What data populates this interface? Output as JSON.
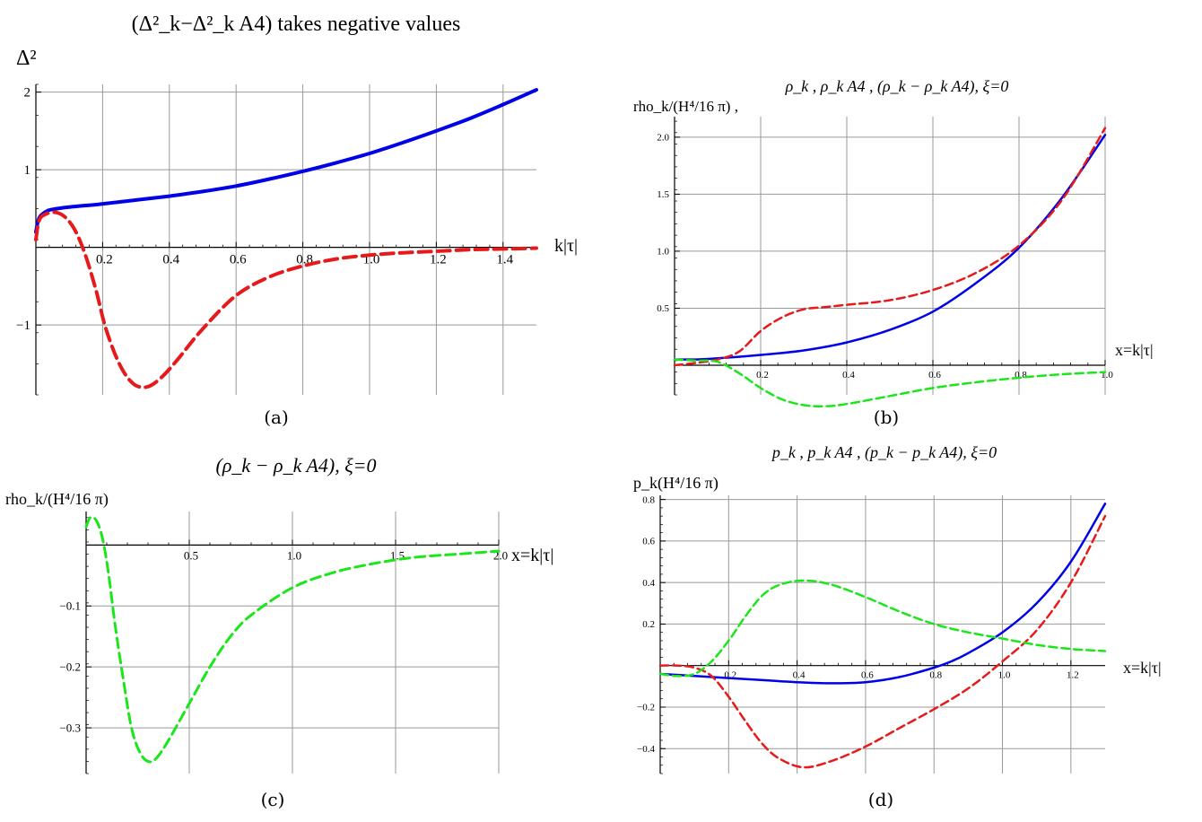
{
  "colors": {
    "blue": "#0000e6",
    "red": "#e61a1a",
    "green": "#1ae61a",
    "grid": "#999999"
  },
  "chart_data": [
    {
      "id": "a",
      "type": "line",
      "panel_label": "(a)",
      "title": "(Δ²_k−Δ²_k A4)  takes negative values",
      "ylabel": "Δ²",
      "xlabel": "k|τ|",
      "xlim": [
        0,
        1.5
      ],
      "ylim": [
        -1.9,
        2.1
      ],
      "xticks": [
        0.2,
        0.4,
        0.6,
        0.8,
        1.0,
        1.2,
        1.4
      ],
      "xtick_labels": [
        "0.2",
        "0.4",
        "0.6",
        "0.8",
        "1.0",
        "1.2",
        "1.4"
      ],
      "yticks": [
        -1,
        1,
        2
      ],
      "ytick_labels": [
        "−1",
        "1",
        "2"
      ],
      "grid": true,
      "series": [
        {
          "style": "solid",
          "color": "blue",
          "x": [
            0.0,
            0.01,
            0.03,
            0.05,
            0.1,
            0.2,
            0.3,
            0.4,
            0.5,
            0.6,
            0.7,
            0.8,
            0.9,
            1.0,
            1.1,
            1.2,
            1.3,
            1.4,
            1.5
          ],
          "y": [
            0.2,
            0.38,
            0.46,
            0.49,
            0.52,
            0.56,
            0.61,
            0.66,
            0.72,
            0.79,
            0.88,
            0.98,
            1.09,
            1.21,
            1.35,
            1.5,
            1.66,
            1.84,
            2.03
          ]
        },
        {
          "style": "dashed",
          "color": "red",
          "x": [
            0.0,
            0.01,
            0.03,
            0.06,
            0.09,
            0.12,
            0.15,
            0.18,
            0.21,
            0.25,
            0.29,
            0.33,
            0.37,
            0.42,
            0.5,
            0.6,
            0.7,
            0.8,
            0.9,
            1.0,
            1.1,
            1.2,
            1.3,
            1.4,
            1.5
          ],
          "y": [
            0.1,
            0.35,
            0.43,
            0.45,
            0.38,
            0.2,
            -0.12,
            -0.55,
            -1.05,
            -1.5,
            -1.75,
            -1.8,
            -1.7,
            -1.47,
            -1.05,
            -0.62,
            -0.38,
            -0.24,
            -0.15,
            -0.1,
            -0.07,
            -0.05,
            -0.03,
            -0.02,
            -0.01
          ]
        }
      ]
    },
    {
      "id": "b",
      "type": "line",
      "panel_label": "(b)",
      "title": "ρ_k ,   ρ_k A4 ,    (ρ_k − ρ_k A4),    ξ=0",
      "ylabel": "rho_k/(H⁴/16 π) ,",
      "xlabel": "x=k|τ|",
      "xlim": [
        0,
        1.0
      ],
      "ylim": [
        -0.26,
        2.18
      ],
      "xticks": [
        0.2,
        0.4,
        0.6,
        0.8,
        1.0
      ],
      "xtick_labels": [
        "0.2",
        "0.4",
        "0.6",
        "0.8",
        "1.0"
      ],
      "yticks": [
        0.5,
        1.0,
        1.5,
        2.0
      ],
      "ytick_labels": [
        "0.5",
        "1.0",
        "1.5",
        "2.0"
      ],
      "grid": true,
      "series": [
        {
          "style": "solid",
          "color": "blue",
          "x": [
            0.0,
            0.05,
            0.1,
            0.2,
            0.3,
            0.4,
            0.5,
            0.6,
            0.7,
            0.8,
            0.9,
            1.0
          ],
          "y": [
            0.05,
            0.05,
            0.06,
            0.09,
            0.13,
            0.2,
            0.31,
            0.47,
            0.72,
            1.03,
            1.47,
            2.02
          ]
        },
        {
          "style": "dashed",
          "color": "red",
          "x": [
            0.0,
            0.05,
            0.1,
            0.15,
            0.2,
            0.25,
            0.3,
            0.35,
            0.4,
            0.5,
            0.6,
            0.7,
            0.8,
            0.9,
            1.0
          ],
          "y": [
            0.0,
            0.02,
            0.05,
            0.12,
            0.3,
            0.42,
            0.49,
            0.51,
            0.53,
            0.57,
            0.66,
            0.81,
            1.05,
            1.45,
            2.08
          ]
        },
        {
          "style": "dashed",
          "color": "green",
          "x": [
            0.0,
            0.05,
            0.1,
            0.15,
            0.2,
            0.25,
            0.3,
            0.35,
            0.4,
            0.5,
            0.6,
            0.7,
            0.8,
            0.9,
            1.0
          ],
          "y": [
            0.05,
            0.04,
            0.03,
            -0.07,
            -0.2,
            -0.3,
            -0.35,
            -0.36,
            -0.34,
            -0.27,
            -0.2,
            -0.15,
            -0.11,
            -0.08,
            -0.06
          ]
        }
      ]
    },
    {
      "id": "c",
      "type": "line",
      "panel_label": "(c)",
      "title": "(ρ_k − ρ_k A4),    ξ=0",
      "ylabel": "rho_k/(H⁴/16 π)",
      "xlabel": "x=k|τ|",
      "xlim": [
        0,
        2.0
      ],
      "ylim": [
        -0.375,
        0.055
      ],
      "xticks": [
        0.5,
        1.0,
        1.5,
        2.0
      ],
      "xtick_labels": [
        "0.5",
        "1.0",
        "1.5",
        "2.0"
      ],
      "yticks": [
        -0.1,
        -0.2,
        -0.3
      ],
      "ytick_labels": [
        "−0.1",
        "−0.2",
        "−0.3"
      ],
      "grid": true,
      "series": [
        {
          "style": "dashed",
          "color": "green",
          "x": [
            0.0,
            0.02,
            0.05,
            0.08,
            0.11,
            0.14,
            0.18,
            0.22,
            0.26,
            0.3,
            0.34,
            0.4,
            0.5,
            0.6,
            0.7,
            0.8,
            1.0,
            1.2,
            1.4,
            1.6,
            1.8,
            2.0
          ],
          "y": [
            0.03,
            0.045,
            0.04,
            0.01,
            -0.05,
            -0.13,
            -0.22,
            -0.3,
            -0.34,
            -0.355,
            -0.35,
            -0.32,
            -0.26,
            -0.2,
            -0.15,
            -0.115,
            -0.07,
            -0.045,
            -0.03,
            -0.02,
            -0.015,
            -0.01
          ]
        }
      ]
    },
    {
      "id": "d",
      "type": "line",
      "panel_label": "(d)",
      "title": "p_k ,   p_k A4 ,    (p_k − p_k A4),    ξ=0",
      "ylabel": "p_k(H⁴/16 π)",
      "xlabel": "x=k|τ|",
      "xlim": [
        0,
        1.3
      ],
      "ylim": [
        -0.52,
        0.82
      ],
      "xticks": [
        0.2,
        0.4,
        0.6,
        0.8,
        1.0,
        1.2
      ],
      "xtick_labels": [
        "0.2",
        "0.4",
        "0.6",
        "0.8",
        "1.0",
        "1.2"
      ],
      "yticks": [
        -0.4,
        -0.2,
        0.2,
        0.4,
        0.6,
        0.8
      ],
      "ytick_labels": [
        "−0.4",
        "−0.2",
        "0.2",
        "0.4",
        "0.6",
        "0.8"
      ],
      "grid": true,
      "series": [
        {
          "style": "solid",
          "color": "blue",
          "x": [
            0.0,
            0.1,
            0.2,
            0.3,
            0.4,
            0.5,
            0.6,
            0.7,
            0.8,
            0.85,
            0.9,
            1.0,
            1.1,
            1.2,
            1.3
          ],
          "y": [
            -0.04,
            -0.05,
            -0.06,
            -0.07,
            -0.08,
            -0.085,
            -0.08,
            -0.055,
            -0.01,
            0.02,
            0.06,
            0.16,
            0.3,
            0.5,
            0.78
          ]
        },
        {
          "style": "dashed",
          "color": "red",
          "x": [
            0.0,
            0.05,
            0.1,
            0.15,
            0.2,
            0.25,
            0.3,
            0.35,
            0.42,
            0.5,
            0.6,
            0.7,
            0.8,
            0.9,
            1.0,
            1.1,
            1.2,
            1.3
          ],
          "y": [
            0.0,
            0.0,
            -0.01,
            -0.05,
            -0.15,
            -0.27,
            -0.38,
            -0.45,
            -0.49,
            -0.46,
            -0.39,
            -0.3,
            -0.21,
            -0.11,
            0.02,
            0.17,
            0.4,
            0.72
          ]
        },
        {
          "style": "dashed",
          "color": "green",
          "x": [
            0.0,
            0.05,
            0.1,
            0.15,
            0.2,
            0.25,
            0.3,
            0.35,
            0.42,
            0.5,
            0.6,
            0.7,
            0.8,
            0.9,
            1.0,
            1.1,
            1.2,
            1.3
          ],
          "y": [
            -0.04,
            -0.05,
            -0.04,
            0.02,
            0.12,
            0.24,
            0.34,
            0.39,
            0.41,
            0.39,
            0.33,
            0.26,
            0.2,
            0.16,
            0.13,
            0.1,
            0.08,
            0.07
          ]
        }
      ]
    }
  ]
}
